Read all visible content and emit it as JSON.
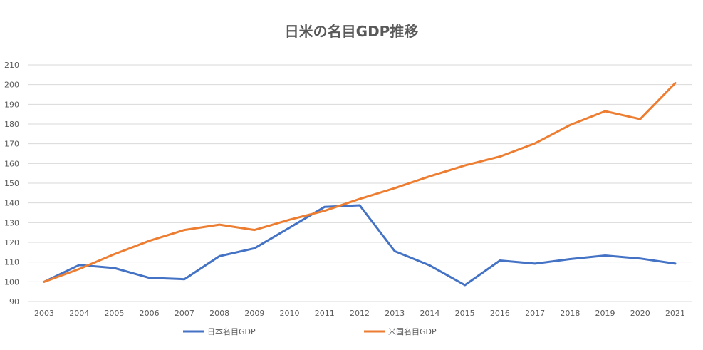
{
  "chart_data": {
    "type": "line",
    "title": "日米の名目GDP推移",
    "xlabel": "",
    "ylabel": "",
    "x": [
      "2003",
      "2004",
      "2005",
      "2006",
      "2007",
      "2008",
      "2009",
      "2010",
      "2011",
      "2012",
      "2013",
      "2014",
      "2015",
      "2016",
      "2017",
      "2018",
      "2019",
      "2020",
      "2021"
    ],
    "ylim": [
      90,
      210
    ],
    "yticks": [
      90,
      100,
      110,
      120,
      130,
      140,
      150,
      160,
      170,
      180,
      190,
      200,
      210
    ],
    "grid": true,
    "legend_position": "bottom",
    "series": [
      {
        "name": "日本名目GDP",
        "color": "#4472C4",
        "values": [
          100,
          108.5,
          107,
          102,
          101.3,
          113,
          117,
          127.5,
          138,
          138.8,
          115.5,
          108.3,
          98.3,
          110.8,
          109.2,
          111.5,
          113.3,
          111.8,
          109.2
        ]
      },
      {
        "name": "米国名目GDP",
        "color": "#ED7D31",
        "values": [
          100,
          106.5,
          114,
          120.8,
          126.3,
          129,
          126.3,
          131.5,
          136,
          142,
          147.5,
          153.5,
          159,
          163.5,
          170.2,
          179.5,
          186.5,
          182.5,
          200.8
        ]
      }
    ]
  }
}
